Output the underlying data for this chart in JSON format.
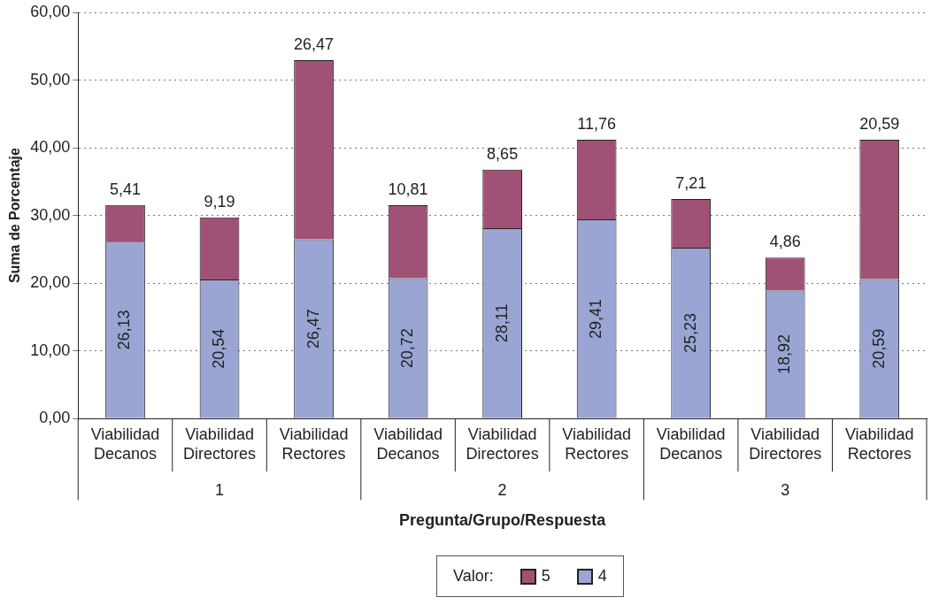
{
  "chart_data": {
    "type": "bar",
    "stacked": true,
    "xlabel": "Pregunta/Grupo/Respuesta",
    "ylabel": "Suma de Porcentaje",
    "legend_title": "Valor:",
    "legend": "bottom",
    "grid": "y",
    "data_labels": true,
    "categories": [
      "Viabilidad\nDecanos",
      "Viabilidad\nDirectores",
      "Viabilidad\nRectores",
      "Viabilidad\nDecanos",
      "Viabilidad\nDirectores",
      "Viabilidad\nRectores",
      "Viabilidad\nDecanos",
      "Viabilidad\nDirectores",
      "Viabilidad\nRectores"
    ],
    "annotations": [
      "1",
      "2",
      "3"
    ],
    "ylim": [
      0,
      60
    ],
    "yticks": [
      {
        "value": 0,
        "label": "0,00"
      },
      {
        "value": 10,
        "label": "10,00"
      },
      {
        "value": 20,
        "label": "20,00"
      },
      {
        "value": 30,
        "label": "30,00"
      },
      {
        "value": 40,
        "label": "40,00"
      },
      {
        "value": 50,
        "label": "50,00"
      },
      {
        "value": 60,
        "label": "60,00"
      }
    ],
    "series": [
      {
        "name": "4",
        "color": "#9aa5d4",
        "values": [
          26.13,
          20.54,
          26.47,
          20.72,
          28.11,
          29.41,
          25.23,
          18.92,
          20.59
        ],
        "value_labels": [
          "26,13",
          "20,54",
          "26,47",
          "20,72",
          "28,11",
          "29,41",
          "25,23",
          "18,92",
          "20,59"
        ]
      },
      {
        "name": "5",
        "color": "#a05276",
        "values": [
          5.41,
          9.19,
          26.47,
          10.81,
          8.65,
          11.76,
          7.21,
          4.86,
          20.59
        ],
        "value_labels": [
          "5,41",
          "9,19",
          "26,47",
          "10,81",
          "8,65",
          "11,76",
          "7,21",
          "4,86",
          "20,59"
        ]
      }
    ]
  }
}
